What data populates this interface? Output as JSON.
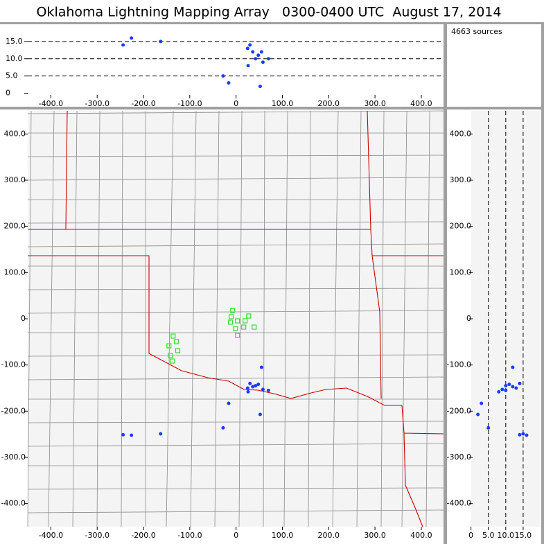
{
  "chart_data": {
    "type": "lma",
    "title": "Oklahoma Lightning Mapping Array   0300-0400 UTC  August 17, 2014",
    "annotation": "4663 sources",
    "source_color": "#1a3cff",
    "station_color": "#33dd33",
    "sources": {
      "x": [
        36,
        25,
        48,
        58,
        26,
        70,
        55,
        -16,
        52,
        -28,
        -244,
        -226,
        -163,
        30,
        42
      ],
      "y": [
        -147,
        -150,
        -142,
        -153,
        -158,
        -155,
        -105,
        -183,
        -207,
        -236,
        -251,
        -252,
        -249,
        -140,
        -145
      ],
      "alt": [
        12,
        13,
        11,
        9,
        8,
        10,
        12,
        3,
        2,
        5,
        14,
        16,
        15,
        14,
        10
      ]
    },
    "stations": {
      "x": [
        -7.5,
        -10.5,
        -12,
        3,
        19.5,
        27,
        16.5,
        -1.5,
        3,
        39,
        -136,
        -129,
        -145,
        -126,
        -142,
        -138
      ],
      "y": [
        18,
        4.5,
        -7.5,
        -4.5,
        -4.5,
        6,
        -18,
        -21,
        -36,
        -18,
        -37.5,
        -49.5,
        -58.5,
        -69,
        -79.5,
        -91.5
      ]
    },
    "plan": {
      "xlim": [
        -450,
        448
      ],
      "ylim": [
        -450,
        450
      ],
      "xticks": [
        {
          "value": -400,
          "label": "-400.0"
        },
        {
          "value": -300,
          "label": "-300.0"
        },
        {
          "value": -200,
          "label": "-200.0"
        },
        {
          "value": -100,
          "label": "-100.0"
        },
        0,
        {
          "value": 100,
          "label": "100.0"
        },
        {
          "value": 200,
          "label": "200.0"
        },
        {
          "value": 300,
          "label": "300.0"
        },
        {
          "value": 400,
          "label": "400.0"
        }
      ],
      "yticks": [
        {
          "value": 400,
          "label": "400.0"
        },
        {
          "value": 300,
          "label": "300.0"
        },
        {
          "value": 200,
          "label": "200.0"
        },
        {
          "value": 100,
          "label": "100.0"
        },
        0,
        {
          "value": -100,
          "label": "-100.0"
        },
        {
          "value": -200,
          "label": "-200.0"
        },
        {
          "value": -300,
          "label": "-300.0"
        },
        {
          "value": -400,
          "label": "-400.0"
        }
      ]
    },
    "profile": {
      "ylim": [
        -1.5,
        20
      ],
      "yticks": [
        0,
        {
          "value": 5,
          "label": "5.0"
        },
        {
          "value": 10,
          "label": "10.0"
        },
        {
          "value": 15,
          "label": "15.0"
        }
      ]
    },
    "side": {
      "xlim": [
        -6.5,
        20
      ],
      "xticks": [
        0,
        {
          "value": 5,
          "label": "5.0"
        },
        {
          "value": 10,
          "label": "10.0"
        },
        {
          "value": 15,
          "label": "15.0"
        }
      ]
    }
  }
}
